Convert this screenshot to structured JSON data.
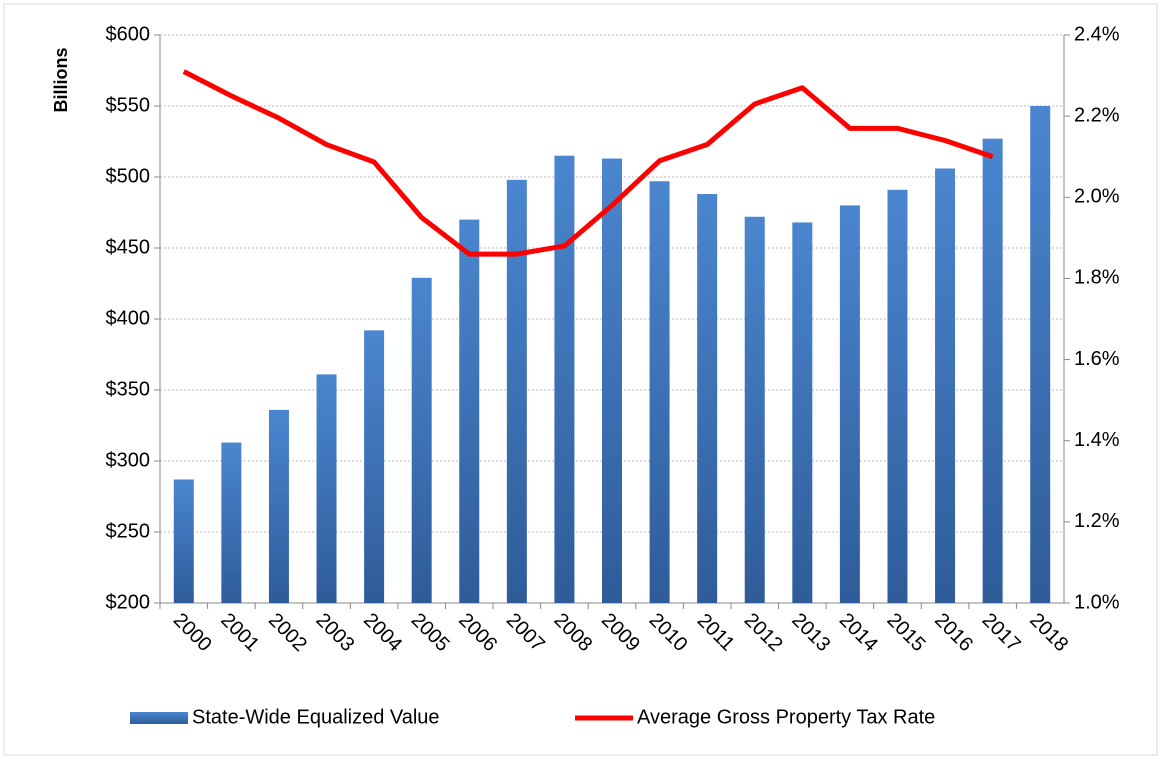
{
  "chart_data": {
    "type": "bar_line",
    "y_label": "Billions",
    "categories": [
      "2000",
      "2001",
      "2002",
      "2003",
      "2004",
      "2005",
      "2006",
      "2007",
      "2008",
      "2009",
      "2010",
      "2011",
      "2012",
      "2013",
      "2014",
      "2015",
      "2016",
      "2017",
      "2018"
    ],
    "series": [
      {
        "name": "State-Wide Equalized Value",
        "color": "#3f6fb0",
        "type": "bar",
        "values": [
          287,
          313,
          336,
          361,
          392,
          429,
          470,
          498,
          515,
          513,
          497,
          488,
          472,
          468,
          480,
          491,
          506,
          527,
          550
        ]
      },
      {
        "name": "Average Gross Property Tax Rate",
        "color": "#ff0000",
        "type": "line",
        "axis": "y2",
        "values": [
          2.31,
          2.25,
          2.195,
          2.13,
          2.087,
          1.95,
          1.86,
          1.86,
          1.88,
          1.98,
          2.09,
          2.13,
          2.23,
          2.27,
          2.17,
          2.17,
          2.14,
          2.1,
          null
        ]
      }
    ],
    "ylim": [
      200,
      600
    ],
    "yticks": [
      {
        "value": 200,
        "label": "$200"
      },
      {
        "value": 250,
        "label": "$250"
      },
      {
        "value": 300,
        "label": "$300"
      },
      {
        "value": 350,
        "label": "$350"
      },
      {
        "value": 400,
        "label": "$400"
      },
      {
        "value": 450,
        "label": "$450"
      },
      {
        "value": 500,
        "label": "$500"
      },
      {
        "value": 550,
        "label": "$550"
      },
      {
        "value": 600,
        "label": "$600"
      }
    ],
    "y2lim": [
      1.0,
      2.4
    ],
    "y2ticks": [
      {
        "value": 1.0,
        "label": "1.0%"
      },
      {
        "value": 1.2,
        "label": "1.2%"
      },
      {
        "value": 1.4,
        "label": "1.4%"
      },
      {
        "value": 1.6,
        "label": "1.6%"
      },
      {
        "value": 1.8,
        "label": "1.8%"
      },
      {
        "value": 2.0,
        "label": "2.0%"
      },
      {
        "value": 2.2,
        "label": "2.2%"
      },
      {
        "value": 2.4,
        "label": "2.4%"
      }
    ],
    "grid": true,
    "legend": "bottom"
  }
}
